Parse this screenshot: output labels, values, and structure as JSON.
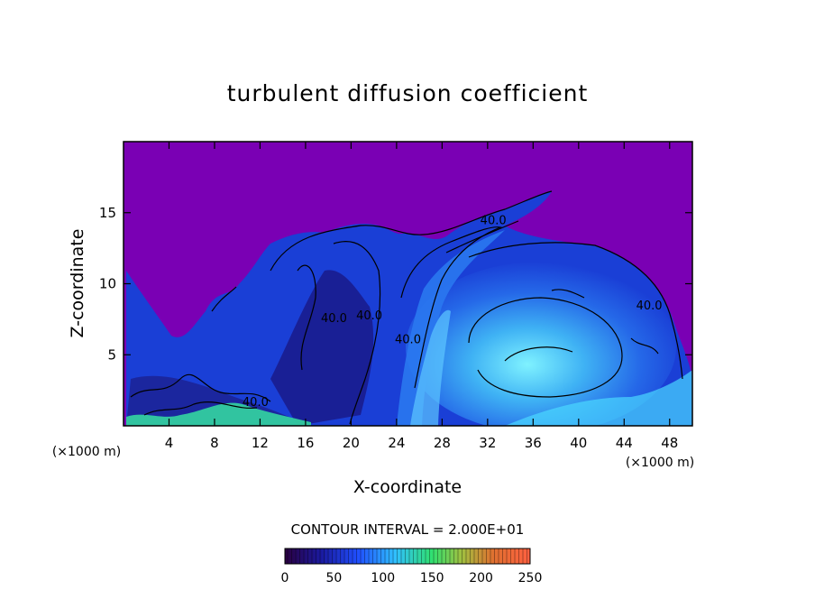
{
  "chart_data": {
    "type": "heatmap",
    "title": "turbulent diffusion coefficient",
    "xlabel": "X-coordinate",
    "ylabel": "Z-coordinate",
    "x_unit": "(×1000 m)",
    "y_unit": "(×1000 m)",
    "xlim": [
      0,
      50
    ],
    "ylim": [
      0,
      20
    ],
    "x_ticks": [
      4,
      8,
      12,
      16,
      20,
      24,
      28,
      32,
      36,
      40,
      44,
      48
    ],
    "y_ticks": [
      5,
      10,
      15
    ],
    "contour_interval_text": "CONTOUR INTERVAL = 2.000E+01",
    "contour_labels": [
      {
        "text": "40.0",
        "x": 32.5,
        "y": 14.2
      },
      {
        "text": "40.0",
        "x": 21.6,
        "y": 7.5
      },
      {
        "text": "40.0",
        "x": 18.5,
        "y": 7.3
      },
      {
        "text": "40.0",
        "x": 25.0,
        "y": 5.8
      },
      {
        "text": "40.0",
        "x": 46.2,
        "y": 8.2
      },
      {
        "text": "40.0",
        "x": 11.6,
        "y": 1.4
      }
    ],
    "colorbar": {
      "min": 0,
      "max": 250,
      "ticks": [
        0,
        50,
        100,
        150,
        200,
        250
      ]
    },
    "colors": {
      "background": "#7a00b4",
      "low": "#1a1a7a",
      "mid": "#1f5ae6",
      "high": "#6fe8ff",
      "peak": "#35e0a0"
    }
  }
}
